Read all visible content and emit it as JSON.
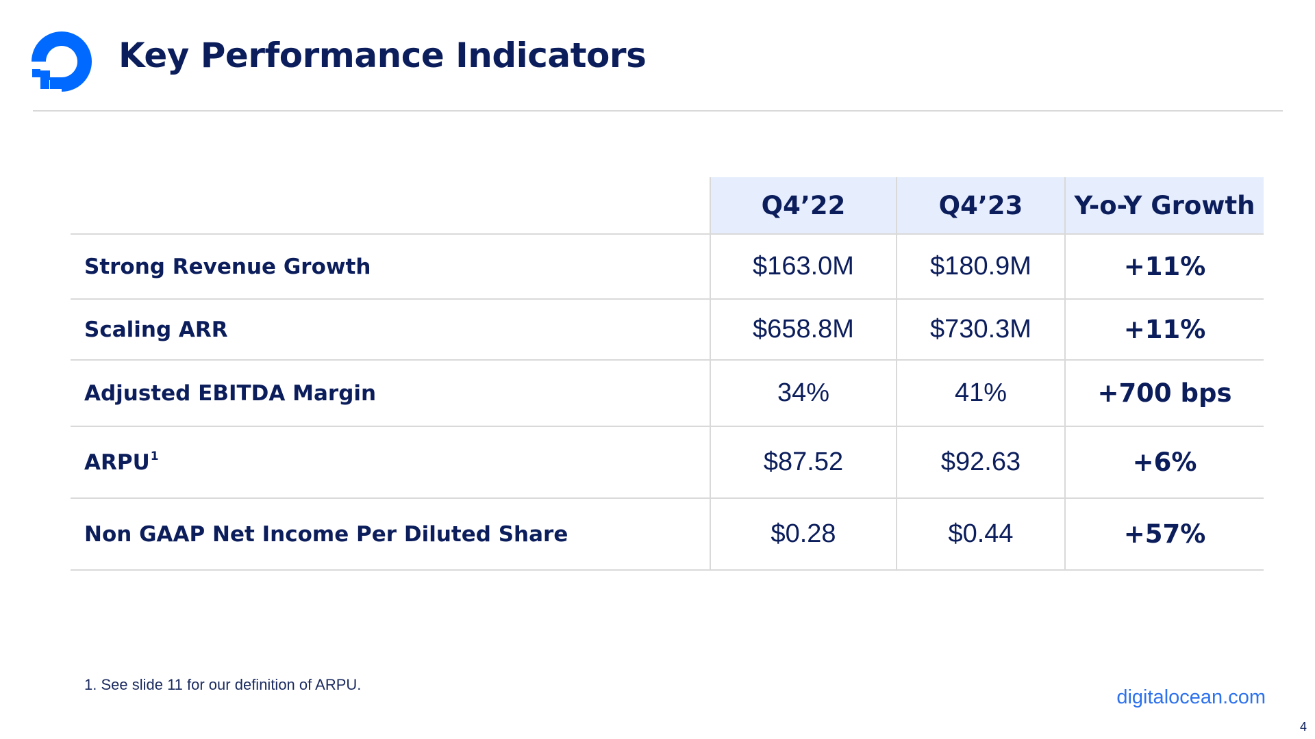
{
  "slide": {
    "title": "Key Performance Indicators",
    "brand_color": "#0069ff",
    "logo_icon": "digitalocean-logo-icon"
  },
  "table": {
    "headers": [
      "",
      "Q4’22",
      "Q4’23",
      "Y-o-Y Growth"
    ],
    "rows": [
      {
        "label": "Strong Revenue Growth",
        "footnote": "",
        "q4_22": "$163.0M",
        "q4_23": "$180.9M",
        "growth": "+11%"
      },
      {
        "label": "Scaling ARR",
        "footnote": "",
        "q4_22": "$658.8M",
        "q4_23": "$730.3M",
        "growth": "+11%"
      },
      {
        "label": "Adjusted EBITDA Margin",
        "footnote": "",
        "q4_22": "34%",
        "q4_23": "41%",
        "growth": "+700 bps"
      },
      {
        "label": "ARPU",
        "footnote": "1",
        "q4_22": "$87.52",
        "q4_23": "$92.63",
        "growth": "+6%"
      },
      {
        "label": "Non GAAP Net Income Per Diluted Share",
        "footnote": "",
        "q4_22": "$0.28",
        "q4_23": "$0.44",
        "growth": "+57%"
      }
    ]
  },
  "footnote": "1. See slide 11 for our definition of ARPU.",
  "footer": {
    "site": "digitalocean.com",
    "page_number": "4"
  }
}
